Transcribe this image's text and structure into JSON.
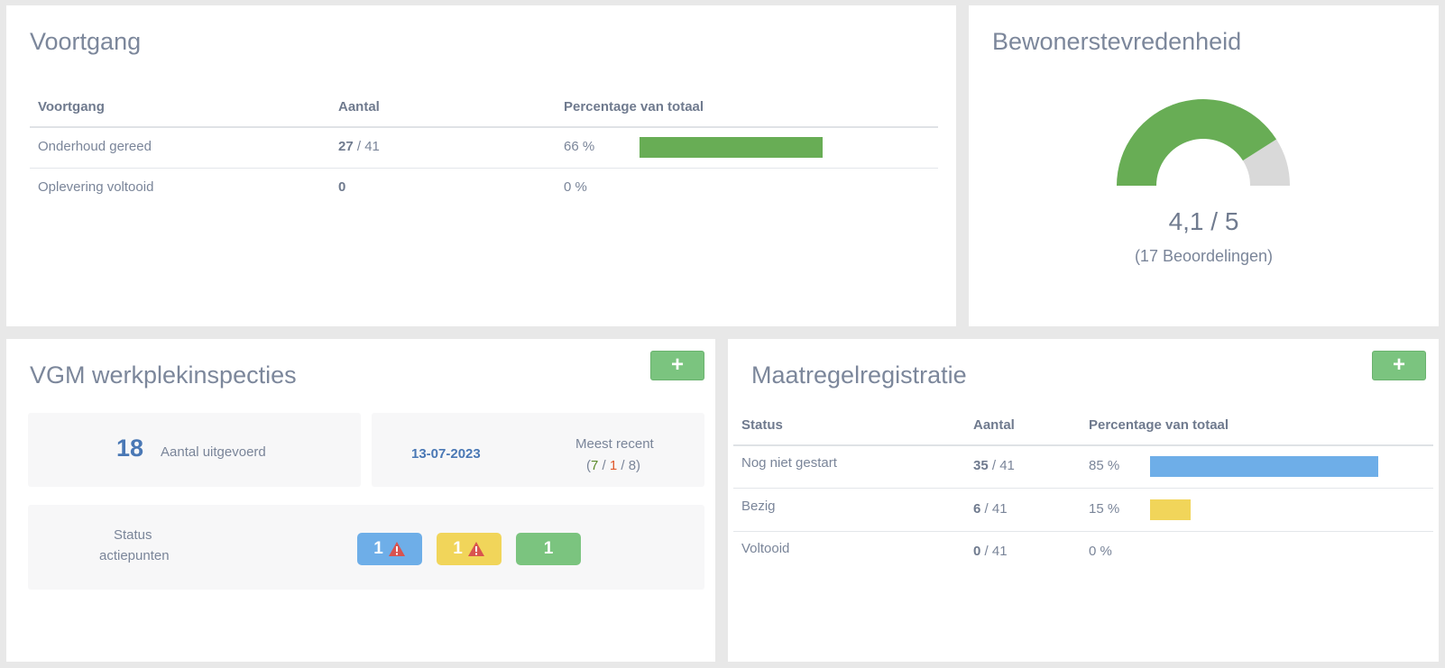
{
  "voortgang": {
    "title": "Voortgang",
    "headers": [
      "Voortgang",
      "Aantal",
      "Percentage van totaal"
    ],
    "rows": [
      {
        "label": "Onderhoud gereed",
        "count": "27",
        "total": " / 41",
        "pct_text": "66 %",
        "pct": 66,
        "color": "#68ad55"
      },
      {
        "label": "Oplevering voltooid",
        "count": "0",
        "total": "",
        "pct_text": "0 %",
        "pct": 0,
        "color": "#68ad55"
      }
    ]
  },
  "bewoners": {
    "title": "Bewonerstevredenheid",
    "score_text": "4,1 / 5",
    "score": 4.1,
    "max": 5,
    "count_text": "(17 Beoordelingen)",
    "fill_color": "#68ad55",
    "rest_color": "#d9d9d9"
  },
  "vgm": {
    "title": "VGM werkplekinspecties",
    "add_label": "+",
    "performed_count": "18",
    "performed_label": "Aantal uitgevoerd",
    "recent_date": "13-07-2023",
    "recent_label": "Meest recent",
    "recent_open": "(",
    "recent_a": "7",
    "recent_sep1": " / ",
    "recent_b": "1",
    "recent_sep2": " / 8)",
    "recent_a_color": "#5a8a2a",
    "recent_b_color": "#e0572b",
    "status_label_1": "Status",
    "status_label_2": "actiepunten",
    "badges": [
      {
        "value": "1",
        "color": "#6eaee8",
        "icon": "warning-icon"
      },
      {
        "value": "1",
        "color": "#f1d55a",
        "icon": "warning-icon"
      },
      {
        "value": "1",
        "color": "#7bc47f",
        "icon": ""
      }
    ]
  },
  "maatregel": {
    "title": "Maatregelregistratie",
    "add_label": "+",
    "headers": [
      "Status",
      "Aantal",
      "Percentage van totaal"
    ],
    "rows": [
      {
        "label": "Nog niet gestart",
        "count": "35",
        "total": " / 41",
        "pct_text": "85 %",
        "pct": 85,
        "color": "#6eaee8"
      },
      {
        "label": "Bezig",
        "count": "6",
        "total": " / 41",
        "pct_text": "15 %",
        "pct": 15,
        "color": "#f1d55a"
      },
      {
        "label": "Voltooid",
        "count": "0",
        "total": " / 41",
        "pct_text": "0 %",
        "pct": 0,
        "color": "#6eaee8"
      }
    ]
  }
}
